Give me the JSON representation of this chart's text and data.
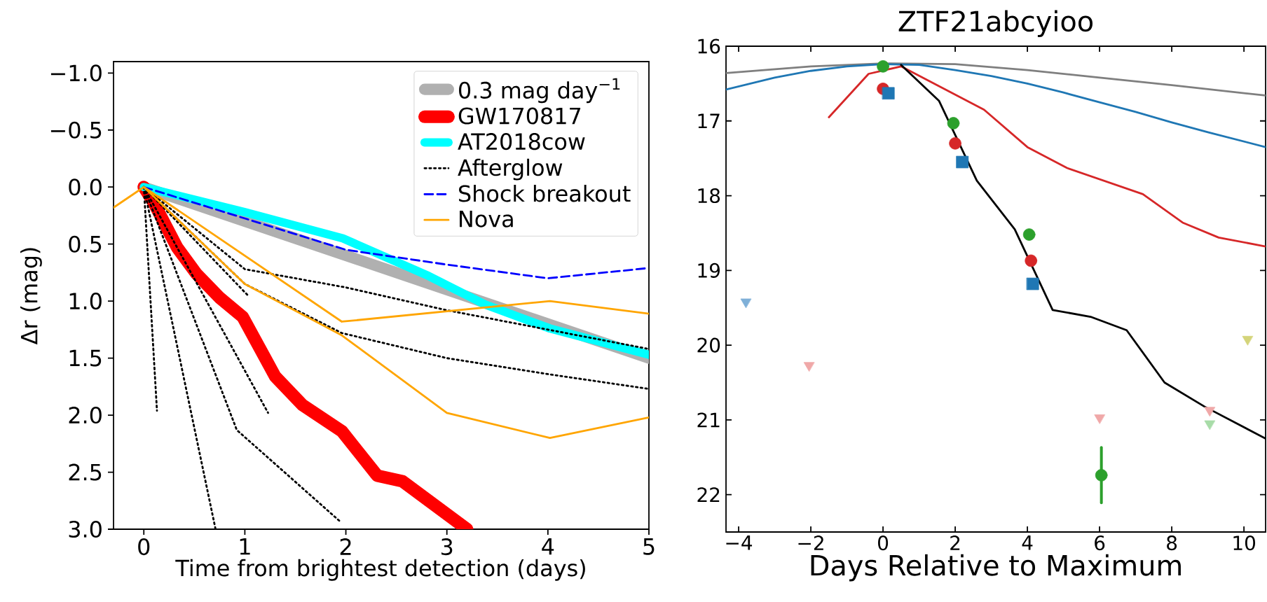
{
  "chart_data": [
    {
      "type": "line",
      "xlabel": "Time from brightest detection (days)",
      "ylabel": "Δr (mag)",
      "xlim": [
        -0.3,
        5
      ],
      "ylim": [
        3.0,
        -1.1
      ],
      "xticks": [
        0,
        1,
        2,
        3,
        4,
        5
      ],
      "yticks": [
        {
          "value": -1.0,
          "label": "−1.0"
        },
        {
          "value": -0.5,
          "label": "−0.5"
        },
        {
          "value": 0.0,
          "label": "0.0"
        },
        {
          "value": 0.5,
          "label": "0.5"
        },
        {
          "value": 1.0,
          "label": "1.0"
        },
        {
          "value": 1.5,
          "label": "1.5"
        },
        {
          "value": 2.0,
          "label": "2.0"
        },
        {
          "value": 2.5,
          "label": "2.5"
        },
        {
          "value": 3.0,
          "label": "3.0"
        }
      ],
      "legend": "top right",
      "series": [
        {
          "name": "0.3 mag day$^{−1}$",
          "color": "#b0b0b0",
          "x": [
            0,
            5
          ],
          "values": [
            0,
            1.5
          ]
        },
        {
          "name": "GW170817",
          "color": "#ff0000",
          "x": [
            0,
            0.1,
            0.33,
            0.52,
            0.75,
            0.98,
            1.3,
            1.57,
            1.96,
            2.31,
            2.56,
            3.2
          ],
          "values": [
            0,
            0.14,
            0.53,
            0.76,
            0.97,
            1.14,
            1.66,
            1.91,
            2.14,
            2.53,
            2.58,
            3.0
          ]
        },
        {
          "name": "AT2018cow",
          "color": "#00ffff",
          "x": [
            0,
            1,
            1.97,
            2.82,
            3.38,
            4.02,
            5
          ],
          "values": [
            0,
            0.22,
            0.45,
            0.78,
            1.03,
            1.24,
            1.47
          ]
        },
        {
          "name": "Afterglow",
          "color": "#000000",
          "line_style": "dotted",
          "x": [
            0,
            1,
            2,
            3,
            4,
            5
          ],
          "values": [
            0,
            0.72,
            0.88,
            1.08,
            1.25,
            1.42
          ]
        },
        {
          "color": "#000000",
          "line_style": "dotted",
          "x": [
            0,
            1,
            1.96,
            3,
            4,
            5
          ],
          "values": [
            0,
            0.85,
            1.28,
            1.5,
            1.64,
            1.77
          ]
        },
        {
          "color": "#000000",
          "line_style": "dotted",
          "x": [
            0,
            0.13
          ],
          "values": [
            0,
            1.96
          ]
        },
        {
          "color": "#000000",
          "line_style": "dotted",
          "x": [
            0,
            0.71
          ],
          "values": [
            0,
            3.0
          ]
        },
        {
          "color": "#000000",
          "line_style": "dotted",
          "x": [
            0,
            0.92,
            1.94
          ],
          "values": [
            0,
            2.13,
            2.93
          ]
        },
        {
          "color": "#000000",
          "line_style": "dotted",
          "x": [
            0,
            1.23
          ],
          "values": [
            0,
            1.98
          ]
        },
        {
          "color": "#000000",
          "line_style": "dotted",
          "x": [
            0,
            1.03
          ],
          "values": [
            0,
            0.95
          ]
        },
        {
          "name": "Shock breakout",
          "color": "#0000ff",
          "line_style": "dashed",
          "x": [
            0,
            2,
            3,
            4,
            5
          ],
          "values": [
            0,
            0.55,
            0.68,
            0.8,
            0.71
          ]
        },
        {
          "name": "Nova",
          "color": "#ffa500",
          "x": [
            -0.3,
            0,
            1.96,
            4.02,
            5
          ],
          "values": [
            0.18,
            0,
            1.18,
            1.0,
            1.11
          ]
        },
        {
          "color": "#ffa500",
          "x": [
            0,
            1,
            1.96,
            3.0,
            4.02,
            5
          ],
          "values": [
            0,
            0.85,
            1.3,
            1.98,
            2.2,
            2.02
          ]
        }
      ]
    },
    {
      "type": "line",
      "title": "ZTF21abcyioo",
      "xlabel": "Days Relative to Maximum",
      "xlim": [
        -4.35,
        10.6
      ],
      "ylim": [
        22.5,
        16
      ],
      "xticks": [
        {
          "value": -4,
          "label": "−4"
        },
        {
          "value": -2,
          "label": "−2"
        },
        0,
        2,
        4,
        6,
        8,
        10
      ],
      "yticks": [
        16,
        17,
        18,
        19,
        20,
        21,
        22
      ],
      "series": [
        {
          "color": "#7f7f7f",
          "x": [
            -4.35,
            -2,
            0,
            2,
            4,
            6,
            8,
            10.6
          ],
          "values": [
            16.36,
            16.27,
            16.23,
            16.24,
            16.32,
            16.42,
            16.52,
            16.66
          ]
        },
        {
          "color": "#1f77b4",
          "x": [
            -4.35,
            -3,
            -2,
            -1,
            0,
            1,
            2,
            3,
            4,
            5,
            6,
            7,
            8,
            9,
            10.6
          ],
          "values": [
            16.58,
            16.42,
            16.33,
            16.27,
            16.24,
            16.25,
            16.32,
            16.4,
            16.5,
            16.62,
            16.75,
            16.88,
            17.02,
            17.15,
            17.35
          ]
        },
        {
          "color": "#d62728",
          "x": [
            -1.5,
            -0.4,
            0.5,
            2.8,
            4,
            5.1,
            7.2,
            8.3,
            9.3,
            10.6
          ],
          "values": [
            16.95,
            16.37,
            16.27,
            16.85,
            17.35,
            17.63,
            17.98,
            18.36,
            18.56,
            18.68
          ]
        },
        {
          "color": "#000000",
          "x": [
            0.5,
            1.55,
            2.6,
            3.65,
            4.7,
            5.75,
            6.75,
            7.8,
            8.9,
            10.6
          ],
          "values": [
            16.25,
            16.73,
            17.8,
            18.45,
            19.53,
            19.62,
            19.8,
            20.5,
            20.82,
            21.25
          ]
        },
        {
          "type": "scatter",
          "marker": "circle",
          "color": "#2ca02c",
          "x": [
            0,
            1.95,
            4.05,
            6.05
          ],
          "values": [
            16.27,
            17.03,
            18.52,
            21.74
          ],
          "errors": [
            null,
            null,
            null,
            0.37
          ]
        },
        {
          "type": "scatter",
          "marker": "circle",
          "color": "#d62728",
          "x": [
            0,
            2.0,
            4.1
          ],
          "values": [
            16.57,
            17.3,
            18.87
          ]
        },
        {
          "type": "scatter",
          "marker": "square",
          "color": "#1f77b4",
          "x": [
            0.15,
            2.2,
            4.15
          ],
          "values": [
            16.63,
            17.55,
            19.18
          ]
        },
        {
          "type": "scatter",
          "marker": "triangle",
          "color": "#7fb0d8",
          "x": [
            -3.8
          ],
          "values": [
            19.42
          ]
        },
        {
          "type": "scatter",
          "marker": "triangle",
          "color": "#f0a8a8",
          "x": [
            -2.05,
            6.0,
            9.05
          ],
          "values": [
            20.27,
            20.97,
            20.87
          ]
        },
        {
          "type": "scatter",
          "marker": "triangle",
          "color": "#a8dca8",
          "x": [
            9.05
          ],
          "values": [
            21.05
          ]
        },
        {
          "type": "scatter",
          "marker": "triangle",
          "color": "#d4d47a",
          "x": [
            10.1
          ],
          "values": [
            19.92
          ]
        }
      ]
    }
  ]
}
